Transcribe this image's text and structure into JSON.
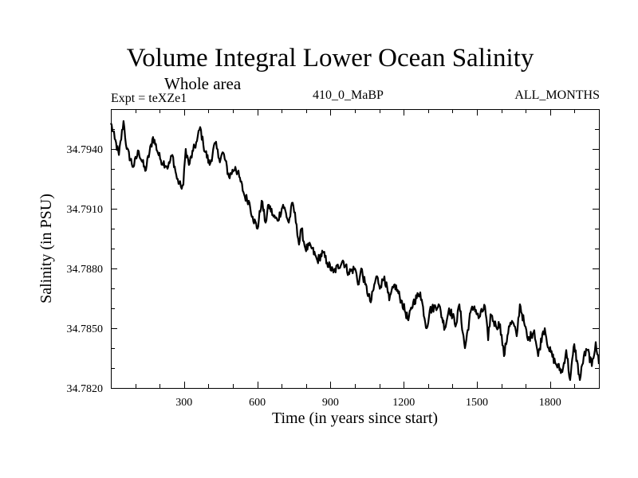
{
  "chart_data": {
    "type": "line",
    "title": "Volume Integral Lower Ocean Salinity",
    "subtitle": "Whole area",
    "annotations": {
      "left": "Expt = teXZe1",
      "center": "410_0_MaBP",
      "right": "ALL_MONTHS"
    },
    "xlabel": "Time (in years since start)",
    "ylabel": "Salinity (in PSU)",
    "xlim": [
      0,
      2000
    ],
    "ylim": [
      34.782,
      34.796
    ],
    "xticks": [
      300,
      600,
      900,
      1200,
      1500,
      1800
    ],
    "xtick_labels": [
      "300",
      "600",
      "900",
      "1200",
      "1500",
      "1800"
    ],
    "x_minor_step": 100,
    "yticks": [
      34.782,
      34.785,
      34.788,
      34.791,
      34.794
    ],
    "ytick_labels": [
      "34.7820",
      "34.7850",
      "34.7880",
      "34.7910",
      "34.7940"
    ],
    "y_minor_step": 0.001,
    "grid": false,
    "legend": "none",
    "series": [
      {
        "name": "Salinity",
        "color": "#000000",
        "x": [
          0,
          16,
          33,
          52,
          65,
          92,
          114,
          141,
          173,
          202,
          235,
          252,
          271,
          287,
          297,
          307,
          320,
          337,
          353,
          366,
          379,
          405,
          428,
          444,
          461,
          484,
          510,
          526,
          549,
          565,
          581,
          601,
          618,
          634,
          647,
          667,
          683,
          706,
          729,
          745,
          761,
          771,
          781,
          797,
          820,
          846,
          869,
          886,
          912,
          951,
          974,
          1000,
          1016,
          1026,
          1042,
          1065,
          1088,
          1105,
          1121,
          1141,
          1163,
          1190,
          1219,
          1239,
          1268,
          1294,
          1307,
          1343,
          1369,
          1386,
          1415,
          1428,
          1451,
          1474,
          1490,
          1507,
          1533,
          1546,
          1556,
          1578,
          1595,
          1611,
          1631,
          1647,
          1663,
          1676,
          1693,
          1709,
          1735,
          1751,
          1768,
          1778,
          1794,
          1824,
          1850,
          1866,
          1882,
          1899,
          1922,
          1938,
          1954,
          1971,
          1987,
          2000
        ],
        "y": [
          34.7953,
          34.7945,
          34.7937,
          34.7954,
          34.794,
          34.7931,
          34.7939,
          34.7929,
          34.7946,
          34.7935,
          34.7931,
          34.7937,
          34.7925,
          34.7921,
          34.7922,
          34.794,
          34.7932,
          34.7939,
          34.7944,
          34.7951,
          34.7942,
          34.7932,
          34.7943,
          34.7935,
          34.7938,
          34.7926,
          34.7931,
          34.7926,
          34.7916,
          34.7914,
          34.7906,
          34.79,
          34.7914,
          34.7903,
          34.7912,
          34.7906,
          34.7904,
          34.7912,
          34.7903,
          34.7913,
          34.7902,
          34.7892,
          34.79,
          34.789,
          34.7891,
          34.7884,
          34.7888,
          34.7883,
          34.7878,
          34.7884,
          34.7878,
          34.788,
          34.7872,
          34.788,
          34.7872,
          34.7863,
          34.7876,
          34.7871,
          34.7876,
          34.7864,
          34.7872,
          34.7864,
          34.7854,
          34.7863,
          34.7868,
          34.785,
          34.7859,
          34.7862,
          34.785,
          34.786,
          34.7852,
          34.7862,
          34.784,
          34.7858,
          34.7861,
          34.7855,
          34.7861,
          34.7844,
          34.7857,
          34.7851,
          34.7852,
          34.7836,
          34.7851,
          34.7853,
          34.7846,
          34.7862,
          34.7853,
          34.7844,
          34.7849,
          34.7836,
          34.7847,
          34.785,
          34.784,
          34.7832,
          34.7828,
          34.7839,
          34.7824,
          34.7842,
          34.7824,
          34.7836,
          34.7839,
          34.7831,
          34.7843,
          34.7832
        ]
      }
    ]
  }
}
